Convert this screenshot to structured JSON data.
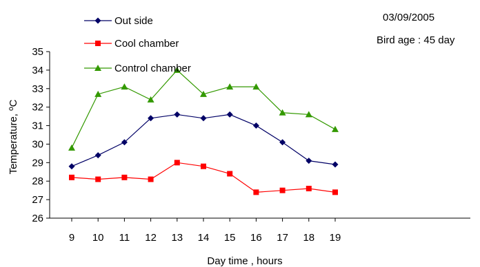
{
  "chart_data": {
    "type": "line",
    "xlabel": "Day time , hours",
    "ylabel": "Temperature, ºC",
    "x": [
      9,
      10,
      11,
      12,
      13,
      14,
      15,
      16,
      17,
      18,
      19
    ],
    "ylim": [
      26,
      35
    ],
    "yticks": [
      26,
      27,
      28,
      29,
      30,
      31,
      32,
      33,
      34,
      35
    ],
    "grid": false,
    "legend_position": "top-left",
    "annotations": [
      "03/09/2005",
      "Bird age : 45 day"
    ],
    "series": [
      {
        "name": "Out side",
        "color": "#000066",
        "marker": "diamond",
        "values": [
          28.8,
          29.4,
          30.1,
          31.4,
          31.6,
          31.4,
          31.6,
          31.0,
          30.1,
          29.1,
          28.9
        ]
      },
      {
        "name": "Cool chamber",
        "color": "#ff0000",
        "marker": "square",
        "values": [
          28.2,
          28.1,
          28.2,
          28.1,
          29.0,
          28.8,
          28.4,
          27.4,
          27.5,
          27.6,
          27.4
        ]
      },
      {
        "name": "Control chamber",
        "color": "#339900",
        "marker": "triangle",
        "values": [
          29.8,
          32.7,
          33.1,
          32.4,
          34.0,
          32.7,
          33.1,
          33.1,
          31.7,
          31.6,
          30.8
        ]
      }
    ]
  }
}
